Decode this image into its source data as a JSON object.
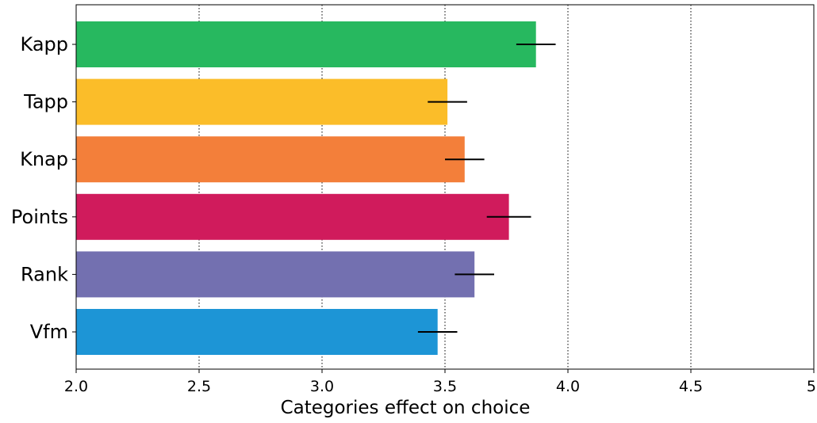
{
  "chart_data": {
    "type": "bar",
    "orientation": "horizontal",
    "title": "",
    "xlabel": "Categories effect on choice",
    "ylabel": "",
    "categories": [
      "Kapp",
      "Tapp",
      "Knap",
      "Points",
      "Rank",
      "Vfm"
    ],
    "values": [
      3.87,
      3.51,
      3.58,
      3.76,
      3.62,
      3.47
    ],
    "errors": [
      0.08,
      0.08,
      0.08,
      0.09,
      0.08,
      0.08
    ],
    "colors": [
      "#27b85f",
      "#fbbd29",
      "#f37f3a",
      "#d01b5c",
      "#7370b0",
      "#1d95d6"
    ],
    "xlim": [
      2.0,
      5.0
    ],
    "xticks": [
      2.0,
      2.5,
      3.0,
      3.5,
      4.0,
      4.5,
      5.0
    ],
    "xtick_labels": [
      "2.0",
      "2.5",
      "3.0",
      "3.5",
      "4.0",
      "4.5",
      "5."
    ],
    "grid": "x dotted",
    "legend": "none"
  }
}
